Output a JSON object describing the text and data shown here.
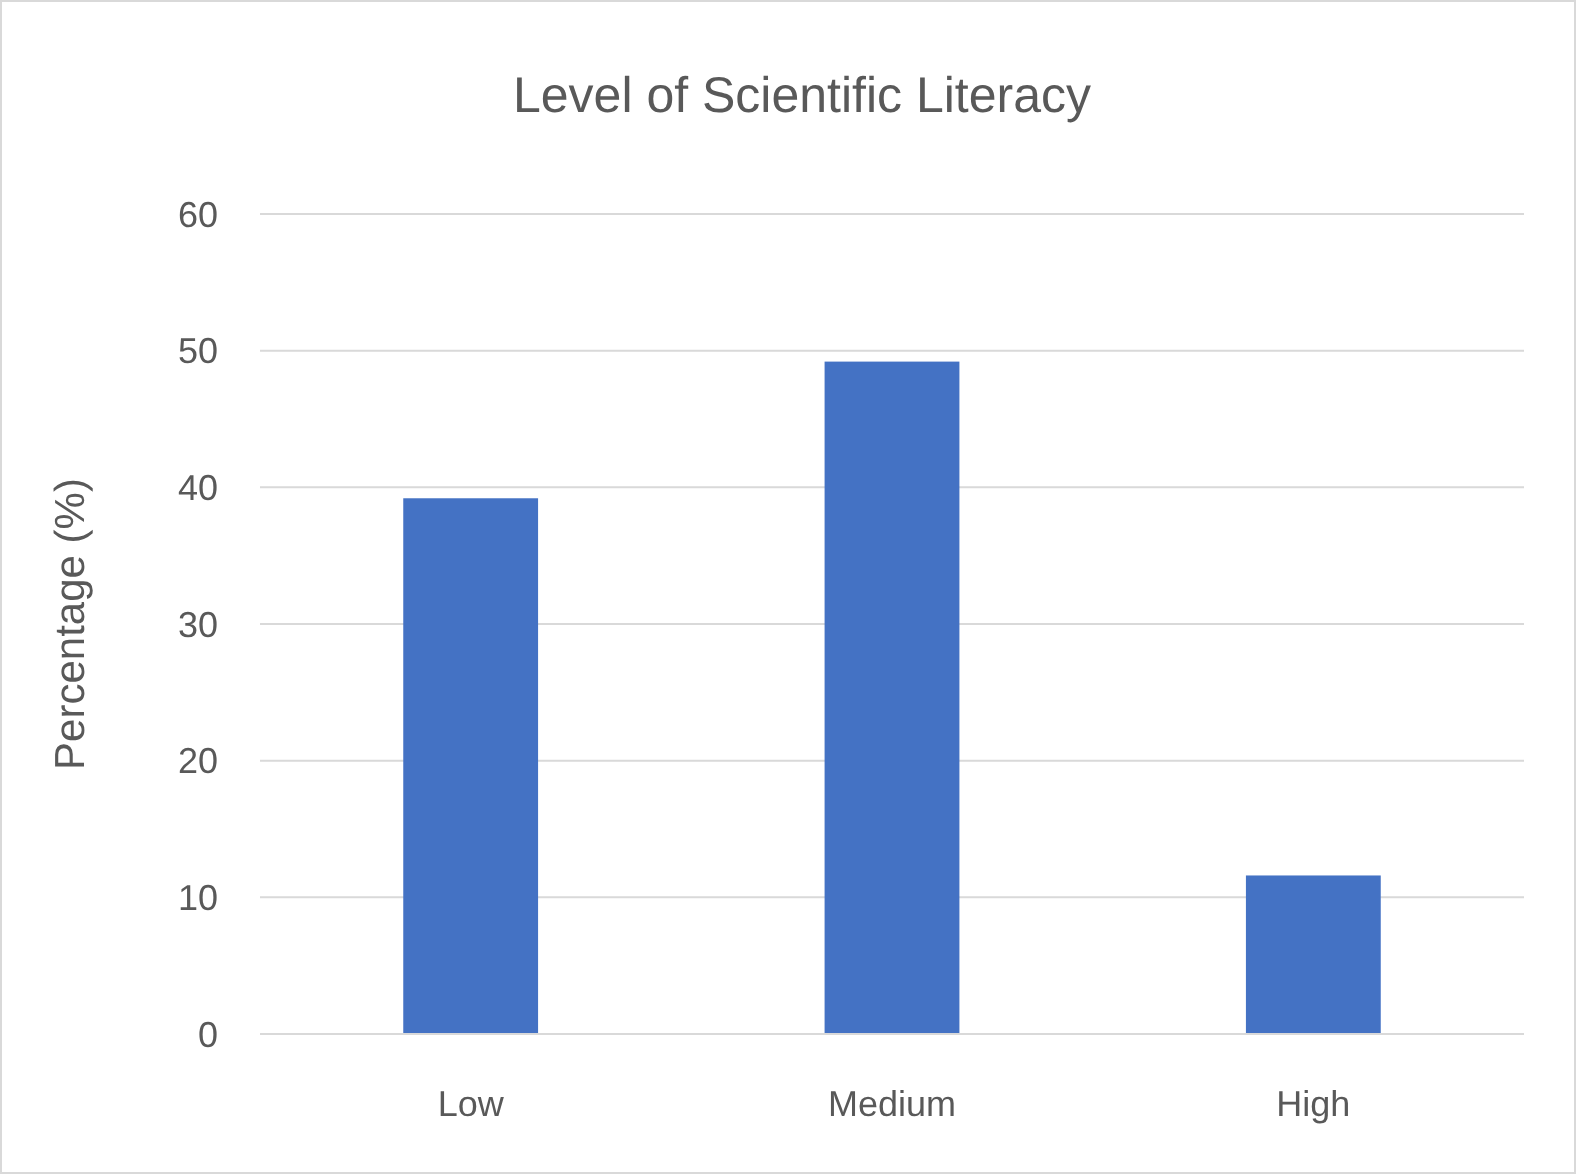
{
  "chart_data": {
    "type": "bar",
    "title": "Level of Scientific Literacy",
    "ylabel": "Percentage (%)",
    "categories": [
      "Low",
      "Medium",
      "High"
    ],
    "values": [
      39.2,
      49.2,
      11.6
    ],
    "color": "#4472c4",
    "ylim": [
      0,
      60
    ],
    "yticks": [
      0,
      10,
      20,
      30,
      40,
      50,
      60
    ],
    "grid": "y"
  }
}
